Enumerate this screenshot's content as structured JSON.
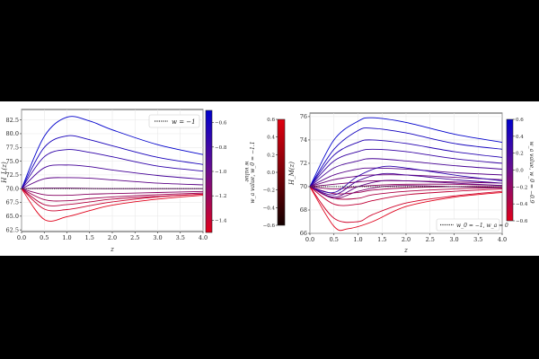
{
  "charts": {
    "left": {
      "ylabel": "H_L(z)",
      "xlabel": "z",
      "legend": "w = −1",
      "colorbar": {
        "label": "w value",
        "ticks": [
          "−0.6",
          "−0.8",
          "−1.0",
          "−1.2",
          "−1.4"
        ],
        "range": [
          -1.5,
          -0.5
        ]
      }
    },
    "middle_colorbar": {
      "label": "w_a value, w_0 = −1.1",
      "ticks": [
        "0.6",
        "0.4",
        "0.2",
        "0.0",
        "−0.2",
        "−0.4",
        "−0.6"
      ],
      "range": [
        -0.6,
        0.6
      ]
    },
    "right": {
      "ylabel": "H_M(z)",
      "xlabel": "z",
      "legend": "w_0 = −1, w_a = 0",
      "colorbar": {
        "label": "w_a value, w_0 = −0.9",
        "ticks": [
          "0.6",
          "0.4",
          "0.2",
          "0.0",
          "−0.2",
          "−0.4",
          "−0.6"
        ],
        "range": [
          -0.6,
          0.6
        ]
      }
    }
  },
  "chart_data": [
    {
      "type": "line",
      "title": "",
      "xlabel": "z",
      "ylabel": "H_L(z)",
      "xlim": [
        0,
        4
      ],
      "ylim": [
        62.2,
        84.4
      ],
      "xticks": [
        "0.0",
        "0.5",
        "1.0",
        "1.5",
        "2.0",
        "2.5",
        "3.0",
        "3.5",
        "4.0"
      ],
      "yticks": [
        "62.5",
        "65.0",
        "67.5",
        "70.0",
        "72.5",
        "75.0",
        "77.5",
        "80.0",
        "82.5"
      ],
      "grid": true,
      "legend": "top-right",
      "reference": {
        "name": "w = −1",
        "style": "dotted",
        "x": [
          0,
          4
        ],
        "y": [
          70,
          70
        ]
      },
      "colorscale": [
        "#0000cc",
        "#e0001a"
      ],
      "series": [
        {
          "param": -0.5,
          "x": [
            0,
            0.5,
            1,
            1.5,
            2,
            3,
            4
          ],
          "y": [
            70,
            79.5,
            83,
            82.3,
            80.7,
            78,
            76.2
          ]
        },
        {
          "param": -0.6,
          "x": [
            0,
            0.5,
            1,
            1.5,
            2,
            3,
            4
          ],
          "y": [
            70,
            77.5,
            79.6,
            78.9,
            77.8,
            75.7,
            74.4
          ]
        },
        {
          "param": -0.7,
          "x": [
            0,
            0.5,
            1,
            1.5,
            2,
            3,
            4
          ],
          "y": [
            70,
            75.8,
            77.1,
            76.6,
            75.8,
            74.1,
            73.2
          ]
        },
        {
          "param": -0.8,
          "x": [
            0,
            0.5,
            1,
            1.5,
            2,
            3,
            4
          ],
          "y": [
            70,
            73.8,
            74.3,
            74,
            73.4,
            72.4,
            71.7
          ]
        },
        {
          "param": -0.9,
          "x": [
            0,
            0.5,
            1,
            1.5,
            2,
            3,
            4
          ],
          "y": [
            70,
            71.8,
            72,
            71.9,
            71.6,
            71,
            70.7
          ]
        },
        {
          "param": -1.0,
          "x": [
            0,
            0.5,
            1,
            1.5,
            2,
            3,
            4
          ],
          "y": [
            70,
            70.1,
            70.1,
            70.05,
            70,
            70,
            70
          ]
        },
        {
          "param": -1.1,
          "x": [
            0,
            0.5,
            1,
            1.5,
            2,
            3,
            4
          ],
          "y": [
            70,
            68.9,
            68.8,
            69,
            69.1,
            69.3,
            69.5
          ]
        },
        {
          "param": -1.2,
          "x": [
            0,
            0.5,
            1,
            1.5,
            2,
            3,
            4
          ],
          "y": [
            70,
            68,
            67.8,
            68.2,
            68.5,
            68.9,
            69.2
          ]
        },
        {
          "param": -1.3,
          "x": [
            0,
            0.5,
            1,
            1.5,
            2,
            3,
            4
          ],
          "y": [
            70,
            67.1,
            67.1,
            67.6,
            68.1,
            68.6,
            69
          ]
        },
        {
          "param": -1.4,
          "x": [
            0,
            0.5,
            1,
            1.5,
            2,
            3,
            4
          ],
          "y": [
            70,
            66.3,
            66.2,
            66.9,
            67.6,
            68.5,
            69
          ]
        },
        {
          "param": -1.5,
          "x": [
            0,
            0.5,
            1,
            1.5,
            2,
            3,
            4
          ],
          "y": [
            70,
            64.4,
            64.9,
            66,
            67,
            68.1,
            68.8
          ]
        }
      ]
    },
    {
      "type": "line",
      "title": "",
      "xlabel": "z",
      "ylabel": "H_M(z)",
      "xlim": [
        0,
        4
      ],
      "ylim": [
        66,
        76.3
      ],
      "xticks": [
        "0.0",
        "0.5",
        "1.0",
        "1.5",
        "2.0",
        "2.5",
        "3.0",
        "3.5",
        "4.0"
      ],
      "yticks": [
        "66",
        "68",
        "70",
        "72",
        "74",
        "76"
      ],
      "grid": true,
      "legend": "bottom-right",
      "reference": {
        "name": "w_0 = −1, w_a = 0",
        "style": "dotted",
        "x": [
          0,
          4
        ],
        "y": [
          70,
          70
        ]
      },
      "colorscale": [
        "#0000cc",
        "#e0001a"
      ],
      "series": [
        {
          "param": 0.6,
          "x": [
            0,
            0.5,
            1,
            1.3,
            2,
            3,
            4
          ],
          "y": [
            70,
            74,
            75.6,
            75.9,
            75.5,
            74.5,
            73.8
          ]
        },
        {
          "param": 0.5,
          "x": [
            0,
            0.5,
            1,
            1.3,
            2,
            3,
            4
          ],
          "y": [
            70,
            73.2,
            74.8,
            75,
            74.6,
            73.7,
            73.2
          ]
        },
        {
          "param": 0.4,
          "x": [
            0,
            0.5,
            1,
            1.3,
            2,
            3,
            4
          ],
          "y": [
            70,
            72.7,
            73.8,
            74,
            73.7,
            73,
            72.5
          ]
        },
        {
          "param": 0.3,
          "x": [
            0,
            0.5,
            1,
            1.3,
            2,
            3,
            4
          ],
          "y": [
            70,
            72.2,
            73,
            73.2,
            73,
            72.4,
            72
          ]
        },
        {
          "param": 0.2,
          "x": [
            0,
            0.5,
            1,
            1.3,
            2,
            3,
            4
          ],
          "y": [
            70,
            71.6,
            72.2,
            72.4,
            72.2,
            71.8,
            71.5
          ]
        },
        {
          "param": 0.1,
          "x": [
            0,
            0.5,
            1,
            1.3,
            2,
            3,
            4
          ],
          "y": [
            70,
            71,
            71.5,
            71.6,
            71.5,
            71.2,
            71
          ]
        },
        {
          "param": 0.0,
          "x": [
            0,
            0.5,
            1,
            1.3,
            2,
            3,
            4
          ],
          "y": [
            70,
            70.6,
            70.9,
            71,
            71,
            70.8,
            70.6
          ]
        },
        {
          "param": -0.1,
          "x": [
            0,
            0.5,
            1,
            1.3,
            2,
            3,
            4
          ],
          "y": [
            70,
            70.2,
            70.4,
            70.5,
            70.5,
            70.4,
            70.3
          ]
        },
        {
          "param": -0.2,
          "x": [
            0,
            0.5,
            1,
            1.3,
            2,
            3,
            4
          ],
          "y": [
            70,
            69.8,
            70,
            70.1,
            70.2,
            70.2,
            70.1
          ]
        },
        {
          "param": -0.3,
          "x": [
            0,
            0.5,
            1,
            1.3,
            2,
            3,
            4
          ],
          "y": [
            70,
            69.4,
            69.5,
            69.7,
            69.9,
            70,
            70
          ]
        },
        {
          "param": -0.4,
          "x": [
            0,
            0.5,
            1,
            1.3,
            2,
            3,
            4
          ],
          "y": [
            70,
            69,
            69,
            69.3,
            69.6,
            69.8,
            69.9
          ]
        },
        {
          "param": -0.5,
          "x": [
            0,
            0.5,
            1,
            1.3,
            2,
            3,
            4
          ],
          "y": [
            70,
            68.5,
            68.5,
            68.8,
            69.3,
            69.6,
            69.8
          ]
        },
        {
          "param": -0.6,
          "x": [
            0,
            0.5,
            1,
            1.3,
            2,
            3,
            4
          ],
          "y": [
            70,
            67.3,
            67,
            67.6,
            68.6,
            69.2,
            69.6
          ]
        },
        {
          "param": -0.7,
          "x": [
            0,
            0.5,
            0.8,
            1.3,
            2,
            3,
            4
          ],
          "y": [
            70,
            66.6,
            66.4,
            67,
            68.3,
            69.1,
            69.5
          ]
        },
        {
          "param": 0.35,
          "x": [
            0,
            0.5,
            1,
            1.5,
            2,
            3,
            4
          ],
          "y": [
            70,
            69.5,
            70.9,
            71.7,
            71.6,
            71,
            70.5
          ]
        },
        {
          "param": 0.2,
          "x": [
            0,
            0.5,
            1,
            1.5,
            2,
            3,
            4
          ],
          "y": [
            70,
            69.3,
            70.5,
            71.1,
            71,
            70.6,
            70.3
          ]
        },
        {
          "param": 0.05,
          "x": [
            0,
            0.5,
            1,
            1.5,
            2,
            3,
            4
          ],
          "y": [
            70,
            69.1,
            70,
            70.5,
            70.5,
            70.3,
            70.1
          ]
        },
        {
          "param": -0.1,
          "x": [
            0,
            0.5,
            1,
            1.5,
            2,
            3,
            4
          ],
          "y": [
            70,
            69,
            69.6,
            70,
            70.1,
            70,
            69.9
          ]
        }
      ]
    }
  ]
}
